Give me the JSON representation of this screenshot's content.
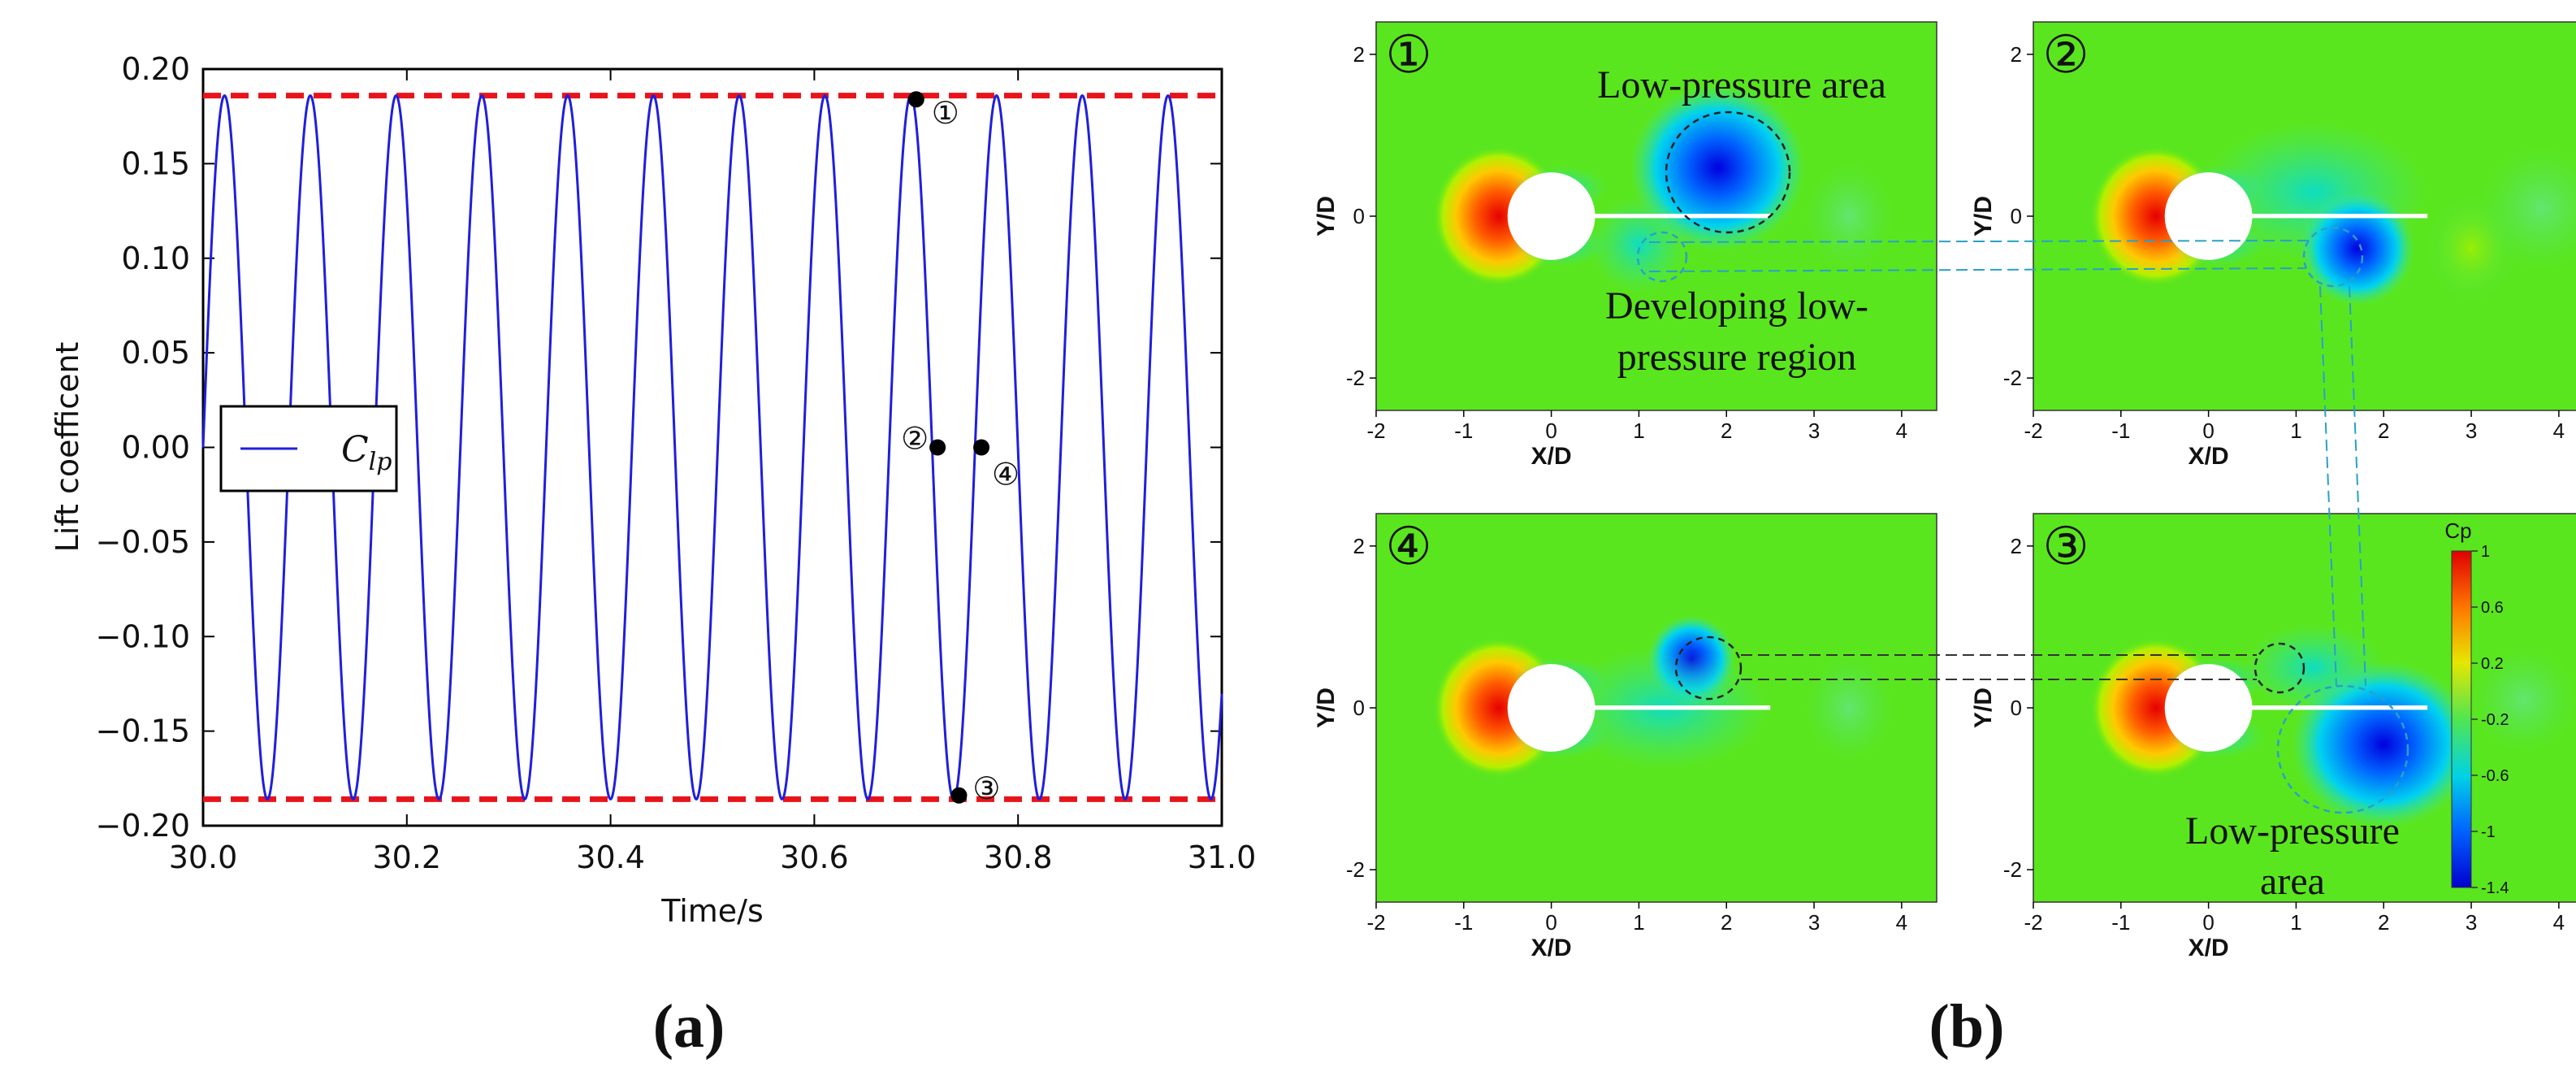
{
  "chart_data": [
    {
      "type": "line",
      "panel": "(a)",
      "xlabel": "Time/s",
      "ylabel": "Lift coefficent",
      "xlim": [
        30.0,
        31.0
      ],
      "ylim": [
        -0.2,
        0.2
      ],
      "xticks": [
        "30.0",
        "30.2",
        "30.4",
        "30.6",
        "30.8",
        "31.0"
      ],
      "yticks": [
        "0.20",
        "0.15",
        "0.10",
        "0.05",
        "0.00",
        "−0.05",
        "−0.10",
        "−0.15",
        "−0.20"
      ],
      "series": [
        {
          "name": "C_lp",
          "legend_main": "C",
          "legend_sub": "lp",
          "color": "#1f1fdc",
          "amplitude": 0.186,
          "period_s": 0.0842,
          "phase_zero_s": 30.0,
          "t_start": 30.0,
          "t_end": 31.0
        }
      ],
      "reference_lines": [
        {
          "y": 0.186,
          "style": "dashed",
          "color": "#e8141b"
        },
        {
          "y": -0.186,
          "style": "dashed",
          "color": "#e8141b"
        }
      ],
      "marked_points": [
        {
          "label": "①",
          "x": 30.7,
          "y": 0.184
        },
        {
          "label": "②",
          "x": 30.721,
          "y": 0.0
        },
        {
          "label": "③",
          "x": 30.742,
          "y": -0.184
        },
        {
          "label": "④",
          "x": 30.764,
          "y": 0.0
        }
      ]
    },
    {
      "type": "heatmap",
      "panel": "(b)",
      "xlabel": "X/D",
      "ylabel": "Y/D",
      "xlim": [
        -2,
        4.4
      ],
      "ylim": [
        -2.4,
        2.4
      ],
      "xticks": [
        "-2",
        "-1",
        "0",
        "1",
        "2",
        "3",
        "4"
      ],
      "yticks": [
        "2",
        "0",
        "-2"
      ],
      "colorbar": {
        "title": "Cp",
        "ticks": [
          "1",
          "0.6",
          "0.2",
          "-0.2",
          "-0.6",
          "-1",
          "-1.4"
        ],
        "range": [
          -1.4,
          1
        ]
      },
      "subplots": [
        {
          "label": "①",
          "annotations": [
            "Low-pressure area",
            "Developing low-",
            "pressure region"
          ]
        },
        {
          "label": "②",
          "annotations": []
        },
        {
          "label": "④",
          "annotations": []
        },
        {
          "label": "③",
          "annotations": [
            "Low-pressure",
            "area"
          ]
        }
      ]
    }
  ],
  "panel_labels": {
    "a": "(a)",
    "b": "(b)"
  }
}
